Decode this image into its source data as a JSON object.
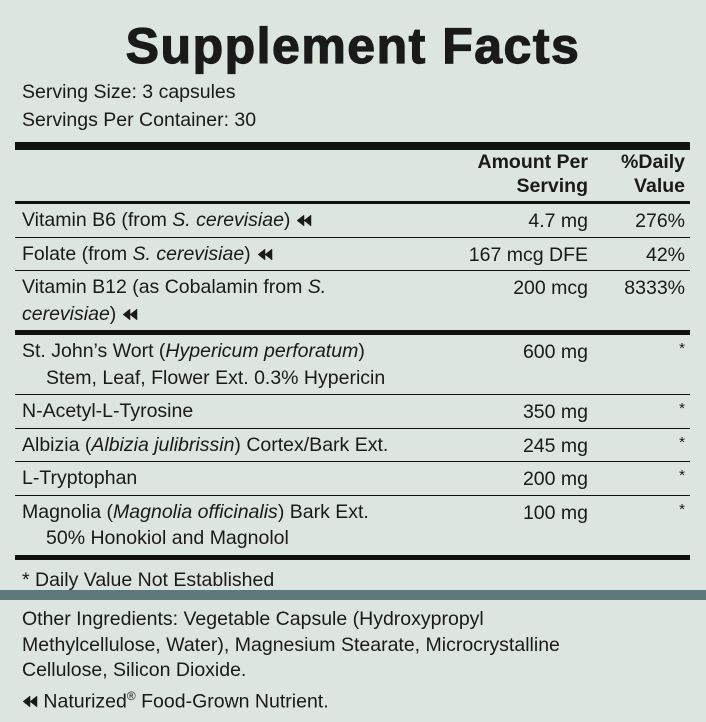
{
  "title": "Supplement Facts",
  "serving": [
    "Serving Size: 3 capsules",
    "Servings Per Container: 30"
  ],
  "header": {
    "amount": [
      "Amount Per",
      "Serving"
    ],
    "dv": [
      "%Daily",
      "Value"
    ]
  },
  "groups": [
    {
      "rows": [
        {
          "lines": [
            {
              "parts": [
                {
                  "text": "Vitamin B6 (from "
                },
                {
                  "text": "S. cerevisiae",
                  "italic": true
                },
                {
                  "text": ")"
                }
              ],
              "naturized": true
            }
          ],
          "amount": "4.7 mg",
          "dv": "276%"
        },
        {
          "lines": [
            {
              "parts": [
                {
                  "text": "Folate (from "
                },
                {
                  "text": "S. cerevisiae",
                  "italic": true
                },
                {
                  "text": ")"
                }
              ],
              "naturized": true
            }
          ],
          "amount": "167 mcg DFE",
          "dv": "42%"
        },
        {
          "lines": [
            {
              "parts": [
                {
                  "text": "Vitamin B12 (as Cobalamin from "
                },
                {
                  "text": "S.",
                  "italic": true
                }
              ]
            },
            {
              "parts": [
                {
                  "text": "cerevisiae",
                  "italic": true
                },
                {
                  "text": ")"
                }
              ],
              "naturized": true
            }
          ],
          "amount": "200 mcg",
          "dv": "8333%"
        }
      ]
    },
    {
      "rows": [
        {
          "lines": [
            {
              "parts": [
                {
                  "text": "St. John’s Wort ("
                },
                {
                  "text": "Hypericum perforatum",
                  "italic": true
                },
                {
                  "text": ")"
                }
              ]
            },
            {
              "parts": [
                {
                  "text": "Stem, Leaf, Flower Ext. 0.3% Hypericin"
                }
              ],
              "indent": true
            }
          ],
          "amount": "600 mg",
          "dv": "*"
        },
        {
          "lines": [
            {
              "parts": [
                {
                  "text": "N-Acetyl-L-Tyrosine"
                }
              ]
            }
          ],
          "amount": "350 mg",
          "dv": "*"
        },
        {
          "lines": [
            {
              "parts": [
                {
                  "text": "Albizia ("
                },
                {
                  "text": "Albizia julibrissin",
                  "italic": true
                },
                {
                  "text": ") Cortex/Bark Ext."
                }
              ]
            }
          ],
          "amount": "245 mg",
          "dv": "*"
        },
        {
          "lines": [
            {
              "parts": [
                {
                  "text": "L-Tryptophan"
                }
              ]
            }
          ],
          "amount": "200 mg",
          "dv": "*"
        },
        {
          "lines": [
            {
              "parts": [
                {
                  "text": "Magnolia ("
                },
                {
                  "text": "Magnolia officinalis",
                  "italic": true
                },
                {
                  "text": ") Bark Ext."
                }
              ]
            },
            {
              "parts": [
                {
                  "text": "50% Honokiol and Magnolol"
                }
              ],
              "indent": true
            }
          ],
          "amount": "100 mg",
          "dv": "*"
        }
      ]
    }
  ],
  "footnote": "* Daily Value Not Established",
  "other_ingredients": [
    "Other Ingredients: Vegetable Capsule (Hydroxypropyl",
    "Methylcellulose, Water), Magnesium Stearate, Microcrystalline",
    "Cellulose, Silicon Dioxide."
  ],
  "legend": {
    "naturized": true,
    "parts": [
      {
        "text": " Naturized"
      },
      {
        "text": "®",
        "sup": true
      },
      {
        "text": " Food-Grown Nutrient."
      }
    ]
  }
}
